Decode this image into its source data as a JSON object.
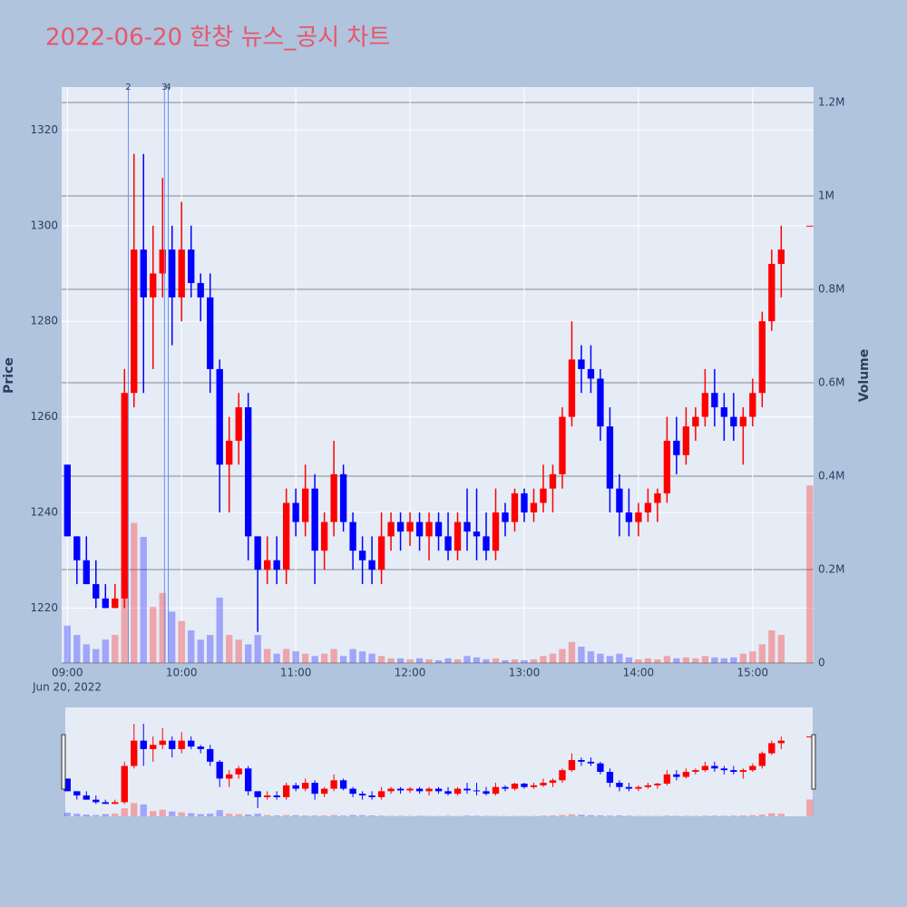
{
  "chart_data": {
    "type": "candlestick",
    "title": "2022-06-20 한창 뉴스_공시 차트",
    "x_date_label": "Jun 20, 2022",
    "y_title": "Price",
    "y2_title": "Volume",
    "x": [
      "09:00",
      "09:05",
      "09:10",
      "09:15",
      "09:20",
      "09:25",
      "09:30",
      "09:35",
      "09:40",
      "09:45",
      "09:50",
      "09:55",
      "10:00",
      "10:05",
      "10:10",
      "10:15",
      "10:20",
      "10:25",
      "10:30",
      "10:35",
      "10:40",
      "10:45",
      "10:50",
      "10:55",
      "11:00",
      "11:05",
      "11:10",
      "11:15",
      "11:20",
      "11:25",
      "11:30",
      "11:35",
      "11:40",
      "11:45",
      "11:50",
      "11:55",
      "12:00",
      "12:05",
      "12:10",
      "12:15",
      "12:20",
      "12:25",
      "12:30",
      "12:35",
      "12:40",
      "12:45",
      "12:50",
      "12:55",
      "13:00",
      "13:05",
      "13:10",
      "13:15",
      "13:20",
      "13:25",
      "13:30",
      "13:35",
      "13:40",
      "13:45",
      "13:50",
      "13:55",
      "14:00",
      "14:05",
      "14:10",
      "14:15",
      "14:20",
      "14:25",
      "14:30",
      "14:35",
      "14:40",
      "14:45",
      "14:50",
      "14:55",
      "15:00",
      "15:05",
      "15:10",
      "15:15",
      "15:30"
    ],
    "open": [
      1250,
      1235,
      1230,
      1225,
      1222,
      1220,
      1222,
      1265,
      1295,
      1285,
      1290,
      1295,
      1285,
      1295,
      1288,
      1285,
      1270,
      1250,
      1255,
      1262,
      1235,
      1228,
      1230,
      1228,
      1242,
      1238,
      1245,
      1232,
      1238,
      1248,
      1238,
      1232,
      1230,
      1228,
      1235,
      1238,
      1236,
      1238,
      1235,
      1238,
      1235,
      1232,
      1238,
      1236,
      1235,
      1232,
      1240,
      1238,
      1244,
      1240,
      1242,
      1245,
      1248,
      1260,
      1272,
      1270,
      1268,
      1258,
      1245,
      1240,
      1238,
      1240,
      1242,
      1244,
      1255,
      1252,
      1258,
      1260,
      1265,
      1262,
      1260,
      1258,
      1260,
      1265,
      1280,
      1292,
      1300
    ],
    "high": [
      1250,
      1235,
      1235,
      1230,
      1225,
      1225,
      1270,
      1315,
      1315,
      1300,
      1310,
      1300,
      1305,
      1300,
      1290,
      1290,
      1272,
      1260,
      1265,
      1265,
      1235,
      1235,
      1235,
      1245,
      1245,
      1250,
      1248,
      1240,
      1255,
      1250,
      1240,
      1235,
      1235,
      1240,
      1240,
      1240,
      1240,
      1240,
      1240,
      1240,
      1240,
      1240,
      1245,
      1245,
      1240,
      1245,
      1242,
      1245,
      1245,
      1245,
      1250,
      1250,
      1262,
      1280,
      1275,
      1275,
      1270,
      1262,
      1248,
      1245,
      1242,
      1245,
      1245,
      1260,
      1260,
      1262,
      1262,
      1270,
      1270,
      1265,
      1265,
      1262,
      1268,
      1282,
      1295,
      1300,
      1300
    ],
    "low": [
      1235,
      1225,
      1225,
      1220,
      1220,
      1220,
      1220,
      1262,
      1265,
      1270,
      1285,
      1275,
      1280,
      1285,
      1280,
      1265,
      1240,
      1240,
      1250,
      1230,
      1215,
      1225,
      1225,
      1225,
      1235,
      1235,
      1225,
      1228,
      1235,
      1236,
      1228,
      1225,
      1225,
      1225,
      1232,
      1232,
      1233,
      1232,
      1230,
      1232,
      1230,
      1230,
      1232,
      1230,
      1230,
      1230,
      1235,
      1236,
      1238,
      1238,
      1240,
      1240,
      1245,
      1258,
      1265,
      1265,
      1255,
      1240,
      1235,
      1235,
      1235,
      1238,
      1238,
      1242,
      1248,
      1250,
      1255,
      1258,
      1258,
      1255,
      1255,
      1250,
      1258,
      1262,
      1278,
      1285,
      1300
    ],
    "close": [
      1235,
      1230,
      1225,
      1222,
      1220,
      1222,
      1265,
      1295,
      1285,
      1290,
      1295,
      1285,
      1295,
      1288,
      1285,
      1270,
      1250,
      1255,
      1262,
      1235,
      1228,
      1230,
      1228,
      1242,
      1238,
      1245,
      1232,
      1238,
      1248,
      1238,
      1232,
      1230,
      1228,
      1235,
      1238,
      1236,
      1238,
      1235,
      1238,
      1235,
      1232,
      1238,
      1236,
      1235,
      1232,
      1240,
      1238,
      1244,
      1240,
      1242,
      1245,
      1248,
      1260,
      1272,
      1270,
      1268,
      1258,
      1245,
      1240,
      1238,
      1240,
      1242,
      1244,
      1255,
      1252,
      1258,
      1260,
      1265,
      1262,
      1260,
      1258,
      1260,
      1265,
      1280,
      1292,
      1295,
      1300
    ],
    "volume": {
      "axis": "y2",
      "values": [
        80000,
        60000,
        40000,
        30000,
        50000,
        60000,
        180000,
        300000,
        270000,
        120000,
        150000,
        110000,
        90000,
        70000,
        50000,
        60000,
        140000,
        60000,
        50000,
        40000,
        60000,
        30000,
        20000,
        30000,
        25000,
        20000,
        15000,
        20000,
        30000,
        15000,
        30000,
        25000,
        20000,
        15000,
        10000,
        10000,
        8000,
        10000,
        8000,
        6000,
        10000,
        8000,
        15000,
        12000,
        8000,
        10000,
        6000,
        8000,
        6000,
        8000,
        15000,
        20000,
        30000,
        45000,
        35000,
        25000,
        20000,
        15000,
        20000,
        12000,
        8000,
        10000,
        8000,
        15000,
        10000,
        12000,
        10000,
        15000,
        12000,
        10000,
        12000,
        20000,
        25000,
        40000,
        70000,
        60000,
        380000
      ]
    },
    "increasing_color": "#ff0000",
    "decreasing_color": "#0000ff",
    "annotations": [
      {
        "x": "09:32",
        "text": "2"
      },
      {
        "x": "09:51",
        "text": "3"
      },
      {
        "x": "09:53",
        "text": "4"
      }
    ],
    "xlim": [
      "08:57",
      "15:32"
    ],
    "xticks": [
      "09:00",
      "10:00",
      "11:00",
      "12:00",
      "13:00",
      "14:00",
      "15:00"
    ],
    "ylim": [
      1208.5,
      1329
    ],
    "yticks": [
      1220,
      1240,
      1260,
      1280,
      1300,
      1320
    ],
    "y2lim": [
      0,
      1233000
    ],
    "y2ticks": [
      0,
      {
        "value": 200000,
        "label": "0.2M"
      },
      {
        "value": 400000,
        "label": "0.4M"
      },
      {
        "value": 600000,
        "label": "0.6M"
      },
      {
        "value": 800000,
        "label": "0.8M"
      },
      {
        "value": 1000000,
        "label": "1M"
      },
      {
        "value": 1200000,
        "label": "1.2M"
      }
    ],
    "range_slider": true
  }
}
